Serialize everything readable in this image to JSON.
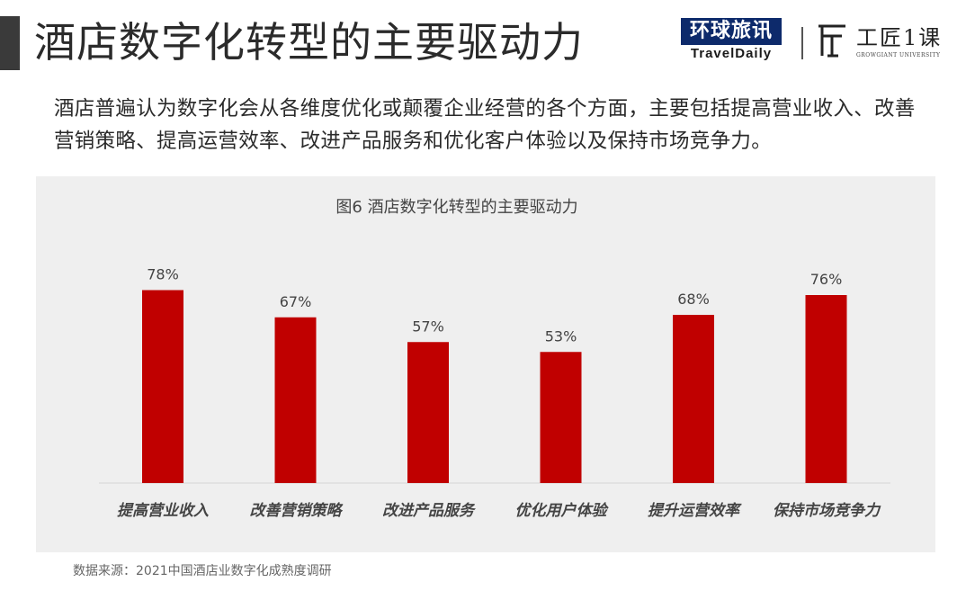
{
  "header": {
    "title": "酒店数字化转型的主要驱动力"
  },
  "logos": {
    "travel_cn": "环球旅讯",
    "travel_en": "TravelDaily",
    "gj_cn": "工匠1课",
    "gj_en": "GROWGIANT UNIVERSITY"
  },
  "intro": {
    "text": "酒店普遍认为数字化会从各维度优化或颠覆企业经营的各个方面，主要包括提高营业收入、改善营销策略、提高运营效率、改进产品服务和优化客户体验以及保持市场竞争力。"
  },
  "chart_data": {
    "type": "bar",
    "title": "图6 酒店数字化转型的主要驱动力",
    "categories": [
      "提高营业收入",
      "改善营销策略",
      "改进产品服务",
      "优化用户体验",
      "提升运营效率",
      "保持市场竞争力"
    ],
    "values": [
      78,
      67,
      57,
      53,
      68,
      76
    ],
    "value_labels": [
      "78%",
      "67%",
      "57%",
      "53%",
      "68%",
      "76%"
    ],
    "unit": "%",
    "ylim": [
      0,
      100
    ],
    "grid": false,
    "bar_color": "#c00000",
    "background": "#efefef"
  },
  "footer": {
    "source": "数据来源：2021中国酒店业数字化成熟度调研"
  }
}
